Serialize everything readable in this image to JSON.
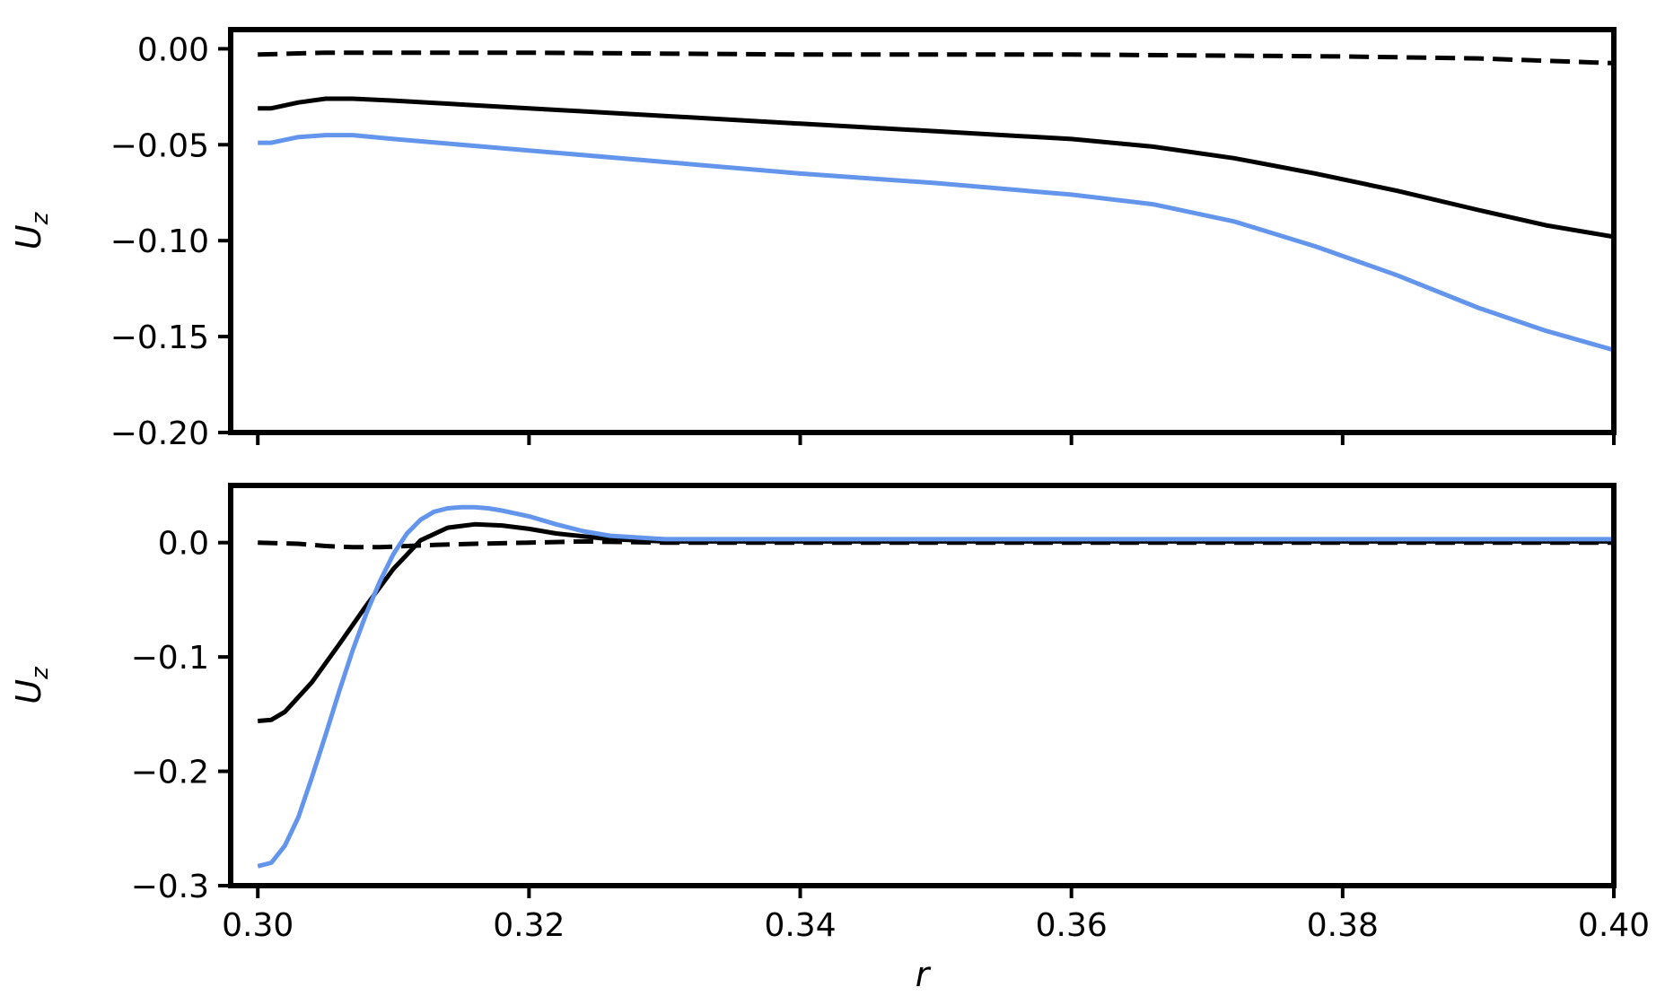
{
  "chart_data": [
    {
      "type": "line",
      "title": "",
      "xlabel": "",
      "ylabel": "U",
      "ylabel_subscript": "z",
      "xlim": [
        0.298,
        0.4
      ],
      "ylim": [
        -0.2,
        0.01
      ],
      "xticks": [
        0.3,
        0.32,
        0.34,
        0.36,
        0.38,
        0.4
      ],
      "xtick_labels": [
        "",
        "",
        "",
        "",
        "",
        ""
      ],
      "yticks": [
        0.0,
        -0.05,
        -0.1,
        -0.15,
        -0.2
      ],
      "ytick_labels": [
        "0.00",
        "−0.05",
        "−0.10",
        "−0.15",
        "−0.20"
      ],
      "grid": false,
      "series": [
        {
          "color": "#000000",
          "style": "dashed",
          "x": [
            0.3,
            0.305,
            0.31,
            0.32,
            0.34,
            0.36,
            0.38,
            0.39,
            0.4
          ],
          "y": [
            -0.003,
            -0.002,
            -0.002,
            -0.002,
            -0.003,
            -0.003,
            -0.004,
            -0.005,
            -0.0075
          ]
        },
        {
          "color": "#000000",
          "style": "solid",
          "x": [
            0.3,
            0.301,
            0.303,
            0.305,
            0.307,
            0.31,
            0.32,
            0.33,
            0.34,
            0.35,
            0.36,
            0.366,
            0.372,
            0.378,
            0.384,
            0.39,
            0.395,
            0.4
          ],
          "y": [
            -0.031,
            -0.031,
            -0.028,
            -0.026,
            -0.026,
            -0.027,
            -0.031,
            -0.035,
            -0.039,
            -0.043,
            -0.047,
            -0.051,
            -0.057,
            -0.065,
            -0.074,
            -0.084,
            -0.092,
            -0.098
          ]
        },
        {
          "color": "#6495ED",
          "style": "solid",
          "x": [
            0.3,
            0.301,
            0.303,
            0.305,
            0.307,
            0.31,
            0.32,
            0.33,
            0.34,
            0.35,
            0.36,
            0.366,
            0.372,
            0.378,
            0.384,
            0.39,
            0.395,
            0.4
          ],
          "y": [
            -0.049,
            -0.049,
            -0.046,
            -0.045,
            -0.045,
            -0.047,
            -0.053,
            -0.059,
            -0.065,
            -0.07,
            -0.076,
            -0.081,
            -0.09,
            -0.103,
            -0.118,
            -0.135,
            -0.147,
            -0.157
          ]
        }
      ]
    },
    {
      "type": "line",
      "title": "",
      "xlabel": "r",
      "ylabel": "U",
      "ylabel_subscript": "z",
      "xlim": [
        0.298,
        0.4
      ],
      "ylim": [
        -0.3,
        0.05
      ],
      "xticks": [
        0.3,
        0.32,
        0.34,
        0.36,
        0.38,
        0.4
      ],
      "xtick_labels": [
        "0.30",
        "0.32",
        "0.34",
        "0.36",
        "0.38",
        "0.40"
      ],
      "yticks": [
        0.0,
        -0.1,
        -0.2,
        -0.3
      ],
      "ytick_labels": [
        "0.0",
        "−0.1",
        "−0.2",
        "−0.3"
      ],
      "grid": false,
      "series": [
        {
          "color": "#000000",
          "style": "dashed",
          "x": [
            0.3,
            0.303,
            0.305,
            0.307,
            0.309,
            0.311,
            0.313,
            0.316,
            0.32,
            0.324,
            0.33,
            0.34,
            0.36,
            0.38,
            0.4
          ],
          "y": [
            0.0,
            -0.001,
            -0.003,
            -0.004,
            -0.004,
            -0.003,
            -0.002,
            -0.001,
            0.0,
            0.001,
            0.0,
            0.0,
            0.0,
            0.0,
            0.0
          ]
        },
        {
          "color": "#000000",
          "style": "solid",
          "x": [
            0.3,
            0.301,
            0.302,
            0.304,
            0.306,
            0.308,
            0.31,
            0.312,
            0.314,
            0.316,
            0.318,
            0.32,
            0.322,
            0.326,
            0.33,
            0.34,
            0.36,
            0.38,
            0.4
          ],
          "y": [
            -0.156,
            -0.155,
            -0.148,
            -0.122,
            -0.089,
            -0.055,
            -0.023,
            0.002,
            0.013,
            0.016,
            0.015,
            0.012,
            0.008,
            0.003,
            0.001,
            0.001,
            0.001,
            0.001,
            0.001
          ]
        },
        {
          "color": "#6495ED",
          "style": "solid",
          "x": [
            0.3,
            0.301,
            0.302,
            0.303,
            0.304,
            0.305,
            0.306,
            0.307,
            0.308,
            0.309,
            0.31,
            0.311,
            0.312,
            0.313,
            0.314,
            0.315,
            0.316,
            0.317,
            0.318,
            0.32,
            0.322,
            0.324,
            0.326,
            0.33,
            0.34,
            0.36,
            0.38,
            0.4
          ],
          "y": [
            -0.283,
            -0.28,
            -0.265,
            -0.24,
            -0.205,
            -0.168,
            -0.13,
            -0.094,
            -0.062,
            -0.034,
            -0.01,
            0.008,
            0.02,
            0.027,
            0.03,
            0.031,
            0.031,
            0.03,
            0.028,
            0.023,
            0.016,
            0.01,
            0.006,
            0.003,
            0.003,
            0.003,
            0.003,
            0.003
          ]
        }
      ]
    }
  ]
}
